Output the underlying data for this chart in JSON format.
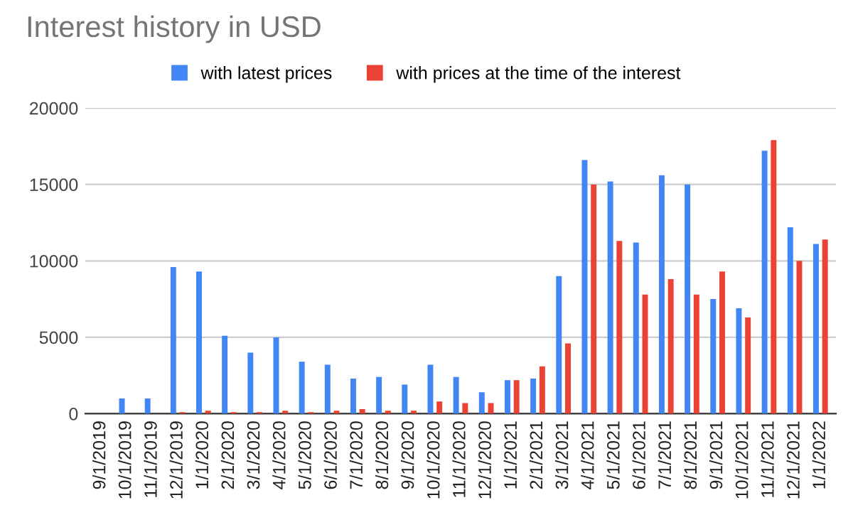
{
  "chart_data": {
    "type": "bar",
    "title": "Interest history in USD",
    "categories": [
      "9/1/2019",
      "10/1/2019",
      "11/1/2019",
      "12/1/2019",
      "1/1/2020",
      "2/1/2020",
      "3/1/2020",
      "4/1/2020",
      "5/1/2020",
      "6/1/2020",
      "7/1/2020",
      "8/1/2020",
      "9/1/2020",
      "10/1/2020",
      "11/1/2020",
      "12/1/2020",
      "1/1/2021",
      "2/1/2021",
      "3/1/2021",
      "4/1/2021",
      "5/1/2021",
      "6/1/2021",
      "7/1/2021",
      "8/1/2021",
      "9/1/2021",
      "10/1/2021",
      "11/1/2021",
      "12/1/2021",
      "1/1/2022"
    ],
    "series": [
      {
        "name": "with latest prices",
        "color": "#4285f4",
        "values": [
          0,
          1000,
          1000,
          9600,
          9300,
          5100,
          4000,
          5000,
          3400,
          3200,
          2300,
          2400,
          1900,
          3200,
          2400,
          1400,
          2200,
          2300,
          9000,
          16600,
          15200,
          11200,
          15600,
          15000,
          7500,
          6900,
          17200,
          12200,
          11100
        ]
      },
      {
        "name": "with prices at the time of the interest",
        "color": "#ea4335",
        "values": [
          null,
          null,
          null,
          100,
          200,
          100,
          100,
          200,
          100,
          200,
          300,
          200,
          200,
          800,
          700,
          700,
          2200,
          3100,
          4600,
          15000,
          11300,
          7800,
          8800,
          7800,
          9300,
          6300,
          17900,
          10000,
          11400
        ]
      }
    ],
    "ylim": [
      0,
      20000
    ],
    "yticks": [
      0,
      5000,
      10000,
      15000,
      20000
    ],
    "grid": "y",
    "legend": "top"
  }
}
